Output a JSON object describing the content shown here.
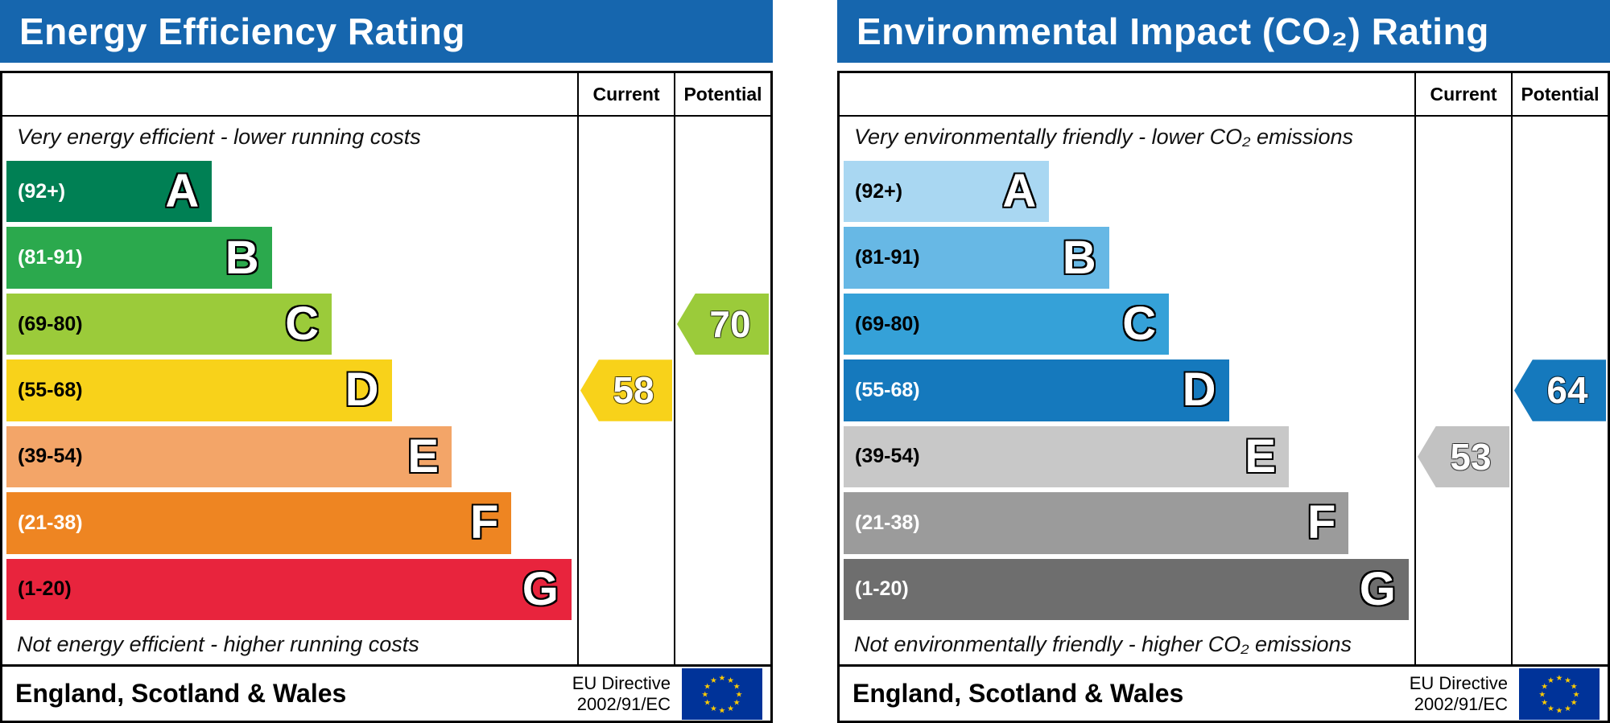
{
  "colors": {
    "header_bar": "#1666ae",
    "eu_flag_blue": "#003399",
    "eu_flag_stars": "#ffcc00"
  },
  "chart_data": [
    {
      "type": "bar",
      "title": "Energy Efficiency Rating",
      "columns": {
        "current": "Current",
        "potential": "Potential"
      },
      "caption_top": "Very energy efficient - lower running costs",
      "caption_bottom": "Not energy efficient - higher running costs",
      "footer": {
        "region": "England, Scotland & Wales",
        "directive_line1": "EU Directive",
        "directive_line2": "2002/91/EC"
      },
      "bands": [
        {
          "letter": "A",
          "range_label": "(92+)",
          "range": [
            92,
            100
          ],
          "color": "#008054",
          "label_color": "#ffffff",
          "width_pct": 36
        },
        {
          "letter": "B",
          "range_label": "(81-91)",
          "range": [
            81,
            91
          ],
          "color": "#2ba94d",
          "label_color": "#ffffff",
          "width_pct": 46.5
        },
        {
          "letter": "C",
          "range_label": "(69-80)",
          "range": [
            69,
            80
          ],
          "color": "#9bcb3a",
          "label_color": "#000000",
          "width_pct": 57
        },
        {
          "letter": "D",
          "range_label": "(55-68)",
          "range": [
            55,
            68
          ],
          "color": "#f8d21a",
          "label_color": "#000000",
          "width_pct": 67.5
        },
        {
          "letter": "E",
          "range_label": "(39-54)",
          "range": [
            39,
            54
          ],
          "color": "#f3a568",
          "label_color": "#000000",
          "width_pct": 78
        },
        {
          "letter": "F",
          "range_label": "(21-38)",
          "range": [
            21,
            38
          ],
          "color": "#ee8522",
          "label_color": "#ffffff",
          "width_pct": 88.5
        },
        {
          "letter": "G",
          "range_label": "(1-20)",
          "range": [
            1,
            20
          ],
          "color": "#e8243d",
          "label_color": "#000000",
          "width_pct": 99
        }
      ],
      "current": {
        "value": 58,
        "band": "D",
        "band_index": 3,
        "arrow_color": "#f8d21a",
        "text_color": "#ffffff"
      },
      "potential": {
        "value": 70,
        "band": "C",
        "band_index": 2,
        "arrow_color": "#9bcb3a",
        "text_color": "#ffffff"
      }
    },
    {
      "type": "bar",
      "title": "Environmental Impact (CO₂) Rating",
      "columns": {
        "current": "Current",
        "potential": "Potential"
      },
      "caption_top": "Very environmentally friendly - lower CO₂ emissions",
      "caption_bottom": "Not environmentally friendly - higher CO₂ emissions",
      "footer": {
        "region": "England, Scotland & Wales",
        "directive_line1": "EU Directive",
        "directive_line2": "2002/91/EC"
      },
      "bands": [
        {
          "letter": "A",
          "range_label": "(92+)",
          "range": [
            92,
            100
          ],
          "color": "#a9d7f2",
          "label_color": "#000000",
          "width_pct": 36
        },
        {
          "letter": "B",
          "range_label": "(81-91)",
          "range": [
            81,
            91
          ],
          "color": "#67b8e5",
          "label_color": "#000000",
          "width_pct": 46.5
        },
        {
          "letter": "C",
          "range_label": "(69-80)",
          "range": [
            69,
            80
          ],
          "color": "#35a1d8",
          "label_color": "#000000",
          "width_pct": 57
        },
        {
          "letter": "D",
          "range_label": "(55-68)",
          "range": [
            55,
            68
          ],
          "color": "#1579bd",
          "label_color": "#ffffff",
          "width_pct": 67.5
        },
        {
          "letter": "E",
          "range_label": "(39-54)",
          "range": [
            39,
            54
          ],
          "color": "#c8c8c8",
          "label_color": "#000000",
          "width_pct": 78
        },
        {
          "letter": "F",
          "range_label": "(21-38)",
          "range": [
            21,
            38
          ],
          "color": "#9b9b9b",
          "label_color": "#ffffff",
          "width_pct": 88.5
        },
        {
          "letter": "G",
          "range_label": "(1-20)",
          "range": [
            1,
            20
          ],
          "color": "#6e6e6e",
          "label_color": "#ffffff",
          "width_pct": 99
        }
      ],
      "current": {
        "value": 53,
        "band": "E",
        "band_index": 4,
        "arrow_color": "#c2c2c2",
        "text_color": "#ffffff"
      },
      "potential": {
        "value": 64,
        "band": "D",
        "band_index": 3,
        "arrow_color": "#1579bd",
        "text_color": "#ffffff"
      }
    }
  ]
}
